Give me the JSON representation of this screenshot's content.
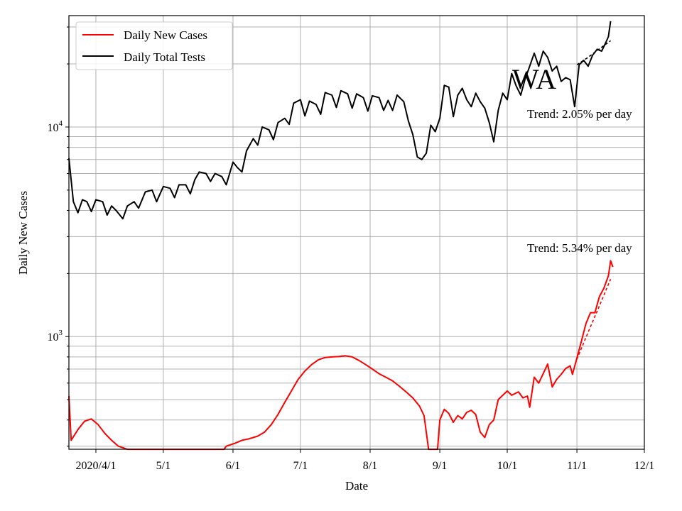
{
  "chart_data": {
    "type": "line",
    "xlabel": "Date",
    "ylabel": "Daily New Cases",
    "yscale": "log",
    "ylim": [
      290,
      34000
    ],
    "xlim": [
      "2020-03-20",
      "2020-12-01"
    ],
    "grid": true,
    "legend_position": "top-left",
    "x_ticks": [
      {
        "date": "2020-04-01",
        "label": "2020/4/1"
      },
      {
        "date": "2020-05-01",
        "label": "5/1"
      },
      {
        "date": "2020-06-01",
        "label": "6/1"
      },
      {
        "date": "2020-07-01",
        "label": "7/1"
      },
      {
        "date": "2020-08-01",
        "label": "8/1"
      },
      {
        "date": "2020-09-01",
        "label": "9/1"
      },
      {
        "date": "2020-10-01",
        "label": "10/1"
      },
      {
        "date": "2020-11-01",
        "label": "11/1"
      },
      {
        "date": "2020-12-01",
        "label": "12/1"
      }
    ],
    "y_major_ticks": [
      {
        "value": 1000,
        "base": "10",
        "exp": "3"
      },
      {
        "value": 10000,
        "base": "10",
        "exp": "4"
      }
    ],
    "region_label": "WA",
    "annotations": [
      {
        "text": "Trend: 2.05% per day",
        "series": "Daily Total Tests"
      },
      {
        "text": "Trend: 5.34% per day",
        "series": "Daily New Cases"
      }
    ],
    "series": [
      {
        "name": "Daily New Cases",
        "color": "#ff0000",
        "points": [
          [
            "2020-03-20",
            520
          ],
          [
            "2020-03-21",
            320
          ],
          [
            "2020-03-24",
            360
          ],
          [
            "2020-03-27",
            395
          ],
          [
            "2020-03-30",
            405
          ],
          [
            "2020-04-02",
            380
          ],
          [
            "2020-04-05",
            345
          ],
          [
            "2020-04-08",
            320
          ],
          [
            "2020-04-11",
            300
          ],
          [
            "2020-04-15",
            288
          ],
          [
            "2020-05-28",
            288
          ],
          [
            "2020-05-29",
            300
          ],
          [
            "2020-06-02",
            310
          ],
          [
            "2020-06-05",
            320
          ],
          [
            "2020-06-08",
            325
          ],
          [
            "2020-06-12",
            335
          ],
          [
            "2020-06-15",
            350
          ],
          [
            "2020-06-18",
            380
          ],
          [
            "2020-06-21",
            425
          ],
          [
            "2020-06-24",
            485
          ],
          [
            "2020-06-27",
            550
          ],
          [
            "2020-06-30",
            625
          ],
          [
            "2020-07-03",
            685
          ],
          [
            "2020-07-06",
            735
          ],
          [
            "2020-07-09",
            775
          ],
          [
            "2020-07-12",
            795
          ],
          [
            "2020-07-15",
            800
          ],
          [
            "2020-07-18",
            803
          ],
          [
            "2020-07-21",
            810
          ],
          [
            "2020-07-24",
            800
          ],
          [
            "2020-07-27",
            770
          ],
          [
            "2020-07-30",
            735
          ],
          [
            "2020-08-02",
            700
          ],
          [
            "2020-08-05",
            665
          ],
          [
            "2020-08-08",
            640
          ],
          [
            "2020-08-11",
            615
          ],
          [
            "2020-08-14",
            580
          ],
          [
            "2020-08-17",
            545
          ],
          [
            "2020-08-20",
            510
          ],
          [
            "2020-08-23",
            465
          ],
          [
            "2020-08-25",
            420
          ],
          [
            "2020-08-27",
            288
          ],
          [
            "2020-08-31",
            288
          ],
          [
            "2020-09-01",
            400
          ],
          [
            "2020-09-03",
            450
          ],
          [
            "2020-09-05",
            430
          ],
          [
            "2020-09-07",
            390
          ],
          [
            "2020-09-09",
            420
          ],
          [
            "2020-09-11",
            405
          ],
          [
            "2020-09-13",
            435
          ],
          [
            "2020-09-15",
            445
          ],
          [
            "2020-09-17",
            425
          ],
          [
            "2020-09-19",
            350
          ],
          [
            "2020-09-21",
            330
          ],
          [
            "2020-09-23",
            380
          ],
          [
            "2020-09-25",
            400
          ],
          [
            "2020-09-27",
            500
          ],
          [
            "2020-09-29",
            525
          ],
          [
            "2020-10-01",
            550
          ],
          [
            "2020-10-03",
            525
          ],
          [
            "2020-10-06",
            545
          ],
          [
            "2020-10-08",
            510
          ],
          [
            "2020-10-10",
            520
          ],
          [
            "2020-10-11",
            460
          ],
          [
            "2020-10-13",
            640
          ],
          [
            "2020-10-15",
            600
          ],
          [
            "2020-10-17",
            665
          ],
          [
            "2020-10-19",
            740
          ],
          [
            "2020-10-21",
            575
          ],
          [
            "2020-10-23",
            625
          ],
          [
            "2020-10-25",
            660
          ],
          [
            "2020-10-27",
            705
          ],
          [
            "2020-10-29",
            725
          ],
          [
            "2020-10-30",
            660
          ],
          [
            "2020-11-01",
            790
          ],
          [
            "2020-11-03",
            950
          ],
          [
            "2020-11-05",
            1150
          ],
          [
            "2020-11-07",
            1300
          ],
          [
            "2020-11-09",
            1300
          ],
          [
            "2020-11-11",
            1550
          ],
          [
            "2020-11-13",
            1700
          ],
          [
            "2020-11-15",
            1950
          ],
          [
            "2020-11-16",
            2300
          ],
          [
            "2020-11-17",
            2150
          ]
        ]
      },
      {
        "name": "Daily Total Tests",
        "color": "#000000",
        "points": [
          [
            "2020-03-20",
            7100
          ],
          [
            "2020-03-22",
            4400
          ],
          [
            "2020-03-24",
            3900
          ],
          [
            "2020-03-26",
            4500
          ],
          [
            "2020-03-28",
            4400
          ],
          [
            "2020-03-30",
            3950
          ],
          [
            "2020-04-01",
            4500
          ],
          [
            "2020-04-04",
            4400
          ],
          [
            "2020-04-06",
            3800
          ],
          [
            "2020-04-08",
            4200
          ],
          [
            "2020-04-10",
            4000
          ],
          [
            "2020-04-13",
            3650
          ],
          [
            "2020-04-15",
            4200
          ],
          [
            "2020-04-18",
            4400
          ],
          [
            "2020-04-20",
            4100
          ],
          [
            "2020-04-23",
            4900
          ],
          [
            "2020-04-26",
            5000
          ],
          [
            "2020-04-28",
            4400
          ],
          [
            "2020-05-01",
            5200
          ],
          [
            "2020-05-04",
            5100
          ],
          [
            "2020-05-06",
            4600
          ],
          [
            "2020-05-08",
            5300
          ],
          [
            "2020-05-11",
            5300
          ],
          [
            "2020-05-13",
            4800
          ],
          [
            "2020-05-15",
            5600
          ],
          [
            "2020-05-17",
            6100
          ],
          [
            "2020-05-20",
            6000
          ],
          [
            "2020-05-22",
            5500
          ],
          [
            "2020-05-24",
            6000
          ],
          [
            "2020-05-27",
            5800
          ],
          [
            "2020-05-29",
            5300
          ],
          [
            "2020-06-01",
            6800
          ],
          [
            "2020-06-03",
            6400
          ],
          [
            "2020-06-05",
            6100
          ],
          [
            "2020-06-07",
            7700
          ],
          [
            "2020-06-10",
            8800
          ],
          [
            "2020-06-12",
            8200
          ],
          [
            "2020-06-14",
            10000
          ],
          [
            "2020-06-17",
            9700
          ],
          [
            "2020-06-19",
            8700
          ],
          [
            "2020-06-21",
            10500
          ],
          [
            "2020-06-24",
            11000
          ],
          [
            "2020-06-26",
            10300
          ],
          [
            "2020-06-28",
            13000
          ],
          [
            "2020-07-01",
            13500
          ],
          [
            "2020-07-03",
            11300
          ],
          [
            "2020-07-05",
            13300
          ],
          [
            "2020-07-08",
            12800
          ],
          [
            "2020-07-10",
            11500
          ],
          [
            "2020-07-12",
            14600
          ],
          [
            "2020-07-15",
            14200
          ],
          [
            "2020-07-17",
            12400
          ],
          [
            "2020-07-19",
            14900
          ],
          [
            "2020-07-22",
            14400
          ],
          [
            "2020-07-24",
            12300
          ],
          [
            "2020-07-26",
            14400
          ],
          [
            "2020-07-29",
            13800
          ],
          [
            "2020-07-31",
            11900
          ],
          [
            "2020-08-02",
            14100
          ],
          [
            "2020-08-05",
            13800
          ],
          [
            "2020-08-07",
            12000
          ],
          [
            "2020-08-09",
            13400
          ],
          [
            "2020-08-11",
            12000
          ],
          [
            "2020-08-13",
            14200
          ],
          [
            "2020-08-16",
            13200
          ],
          [
            "2020-08-18",
            10700
          ],
          [
            "2020-08-20",
            9200
          ],
          [
            "2020-08-22",
            7200
          ],
          [
            "2020-08-24",
            7000
          ],
          [
            "2020-08-26",
            7500
          ],
          [
            "2020-08-28",
            10200
          ],
          [
            "2020-08-30",
            9500
          ],
          [
            "2020-09-01",
            11000
          ],
          [
            "2020-09-03",
            15800
          ],
          [
            "2020-09-05",
            15500
          ],
          [
            "2020-09-07",
            11200
          ],
          [
            "2020-09-09",
            14200
          ],
          [
            "2020-09-11",
            15300
          ],
          [
            "2020-09-13",
            13500
          ],
          [
            "2020-09-15",
            12500
          ],
          [
            "2020-09-17",
            14500
          ],
          [
            "2020-09-19",
            13200
          ],
          [
            "2020-09-21",
            12300
          ],
          [
            "2020-09-23",
            10500
          ],
          [
            "2020-09-25",
            8500
          ],
          [
            "2020-09-27",
            12000
          ],
          [
            "2020-09-29",
            14500
          ],
          [
            "2020-10-01",
            13500
          ],
          [
            "2020-10-03",
            18000
          ],
          [
            "2020-10-05",
            15700
          ],
          [
            "2020-10-07",
            14200
          ],
          [
            "2020-10-09",
            17000
          ],
          [
            "2020-10-11",
            19500
          ],
          [
            "2020-10-13",
            22500
          ],
          [
            "2020-10-15",
            19500
          ],
          [
            "2020-10-17",
            23000
          ],
          [
            "2020-10-19",
            21500
          ],
          [
            "2020-10-21",
            18500
          ],
          [
            "2020-10-23",
            19500
          ],
          [
            "2020-10-25",
            16500
          ],
          [
            "2020-10-27",
            17200
          ],
          [
            "2020-10-29",
            16800
          ],
          [
            "2020-10-31",
            12500
          ],
          [
            "2020-11-02",
            19800
          ],
          [
            "2020-11-04",
            20800
          ],
          [
            "2020-11-06",
            19500
          ],
          [
            "2020-11-08",
            22000
          ],
          [
            "2020-11-10",
            23500
          ],
          [
            "2020-11-12",
            23000
          ],
          [
            "2020-11-14",
            25500
          ],
          [
            "2020-11-15",
            27000
          ],
          [
            "2020-11-16",
            32000
          ]
        ]
      },
      {
        "name": "",
        "role": "trend",
        "color": "#000000",
        "dash": "4,3",
        "points": [
          [
            "2020-11-01",
            19800
          ],
          [
            "2020-11-06",
            21500
          ],
          [
            "2020-11-11",
            23600
          ],
          [
            "2020-11-16",
            25800
          ]
        ]
      },
      {
        "name": "",
        "role": "trend",
        "color": "#ff0000",
        "dash": "4,3",
        "points": [
          [
            "2020-11-01",
            780
          ],
          [
            "2020-11-06",
            1050
          ],
          [
            "2020-11-11",
            1400
          ],
          [
            "2020-11-16",
            1880
          ]
        ]
      }
    ]
  }
}
